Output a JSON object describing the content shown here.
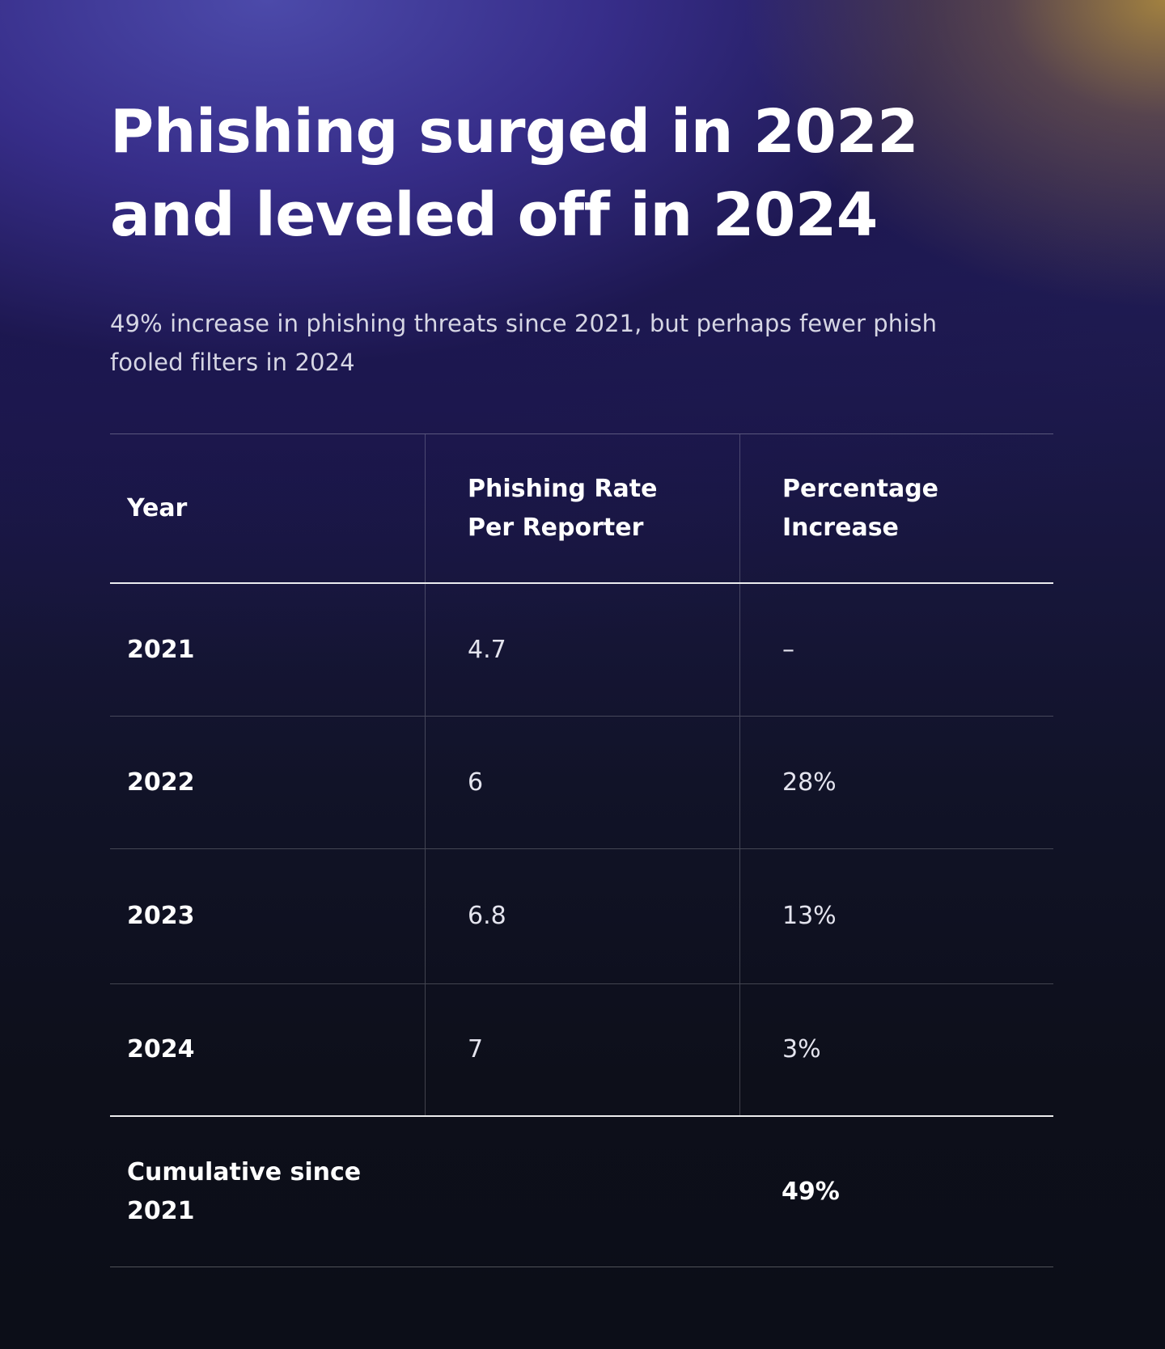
{
  "title": {
    "line1": "Phishing surged in 2022",
    "line2": "and leveled off in 2024"
  },
  "subtitle": {
    "line1": "49% increase in phishing threats since 2021, but perhaps fewer phish",
    "line2": "fooled filters in 2024"
  },
  "chart_data": {
    "type": "table",
    "title": "Phishing surged in 2022 and leveled off in 2024",
    "subtitle": "49% increase in phishing threats since 2021, but perhaps fewer phish fooled filters in 2024",
    "columns": [
      {
        "line1": "Year",
        "line2": ""
      },
      {
        "line1": "Phishing Rate",
        "line2": "Per Reporter"
      },
      {
        "line1": "Percentage",
        "line2": "Increase"
      }
    ],
    "rows": [
      {
        "year": "2021",
        "rate": "4.7",
        "increase": "–"
      },
      {
        "year": "2022",
        "rate": "6",
        "increase": "28%"
      },
      {
        "year": "2023",
        "rate": "6.8",
        "increase": "13%"
      },
      {
        "year": "2024",
        "rate": "7",
        "increase": "3%"
      }
    ],
    "footer": {
      "label_line1": "Cumulative since",
      "label_line2": "2021",
      "rate": "",
      "increase": "49%"
    }
  }
}
